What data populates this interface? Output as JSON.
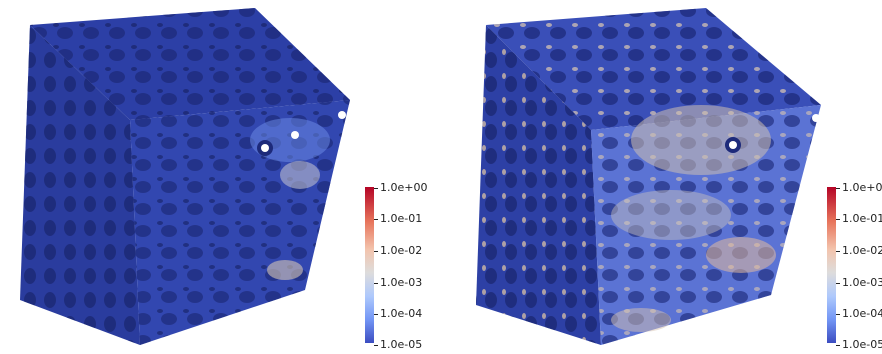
{
  "figure": {
    "colorbar_ticks": [
      "1.0e+00",
      "1.0e-01",
      "1.0e-02",
      "1.0e-03",
      "1.0e-04",
      "1.0e-05"
    ],
    "panels": [
      {
        "id": "left",
        "description_colormap": "cool-to-warm (mostly blue)",
        "accent": "#2f44a8"
      },
      {
        "id": "right",
        "description_colormap": "cool-to-warm (mixed blue/beige)",
        "accent": "#c9b7a3"
      }
    ],
    "colors": {
      "dark_blue": "#26379a",
      "mid_blue": "#3b4cc0",
      "light_blue": "#8fb0f7",
      "neutral": "#dcd8d4",
      "warm": "#e9b99d",
      "red": "#b40426"
    }
  }
}
